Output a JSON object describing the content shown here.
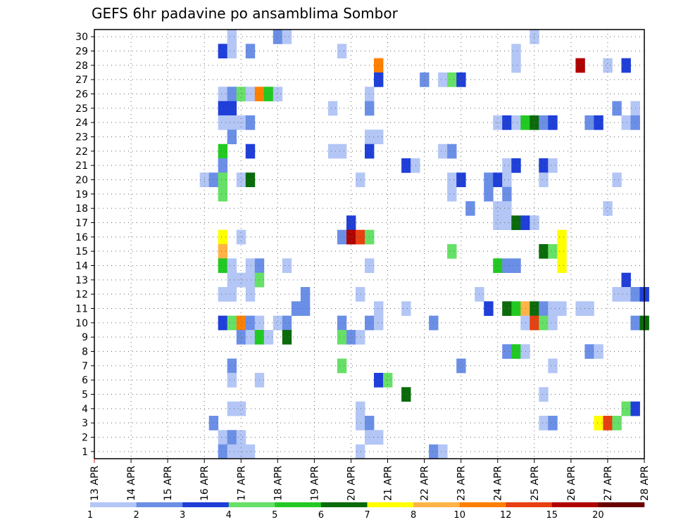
{
  "chart_data": {
    "type": "heatmap",
    "title": "GEFS 6hr padavine po ansamblima Sombor",
    "x_tick_labels": [
      "13 APR",
      "14 APR",
      "15 APR",
      "16 APR",
      "17 APR",
      "18 APR",
      "19 APR",
      "20 APR",
      "21 APR",
      "22 APR",
      "23 APR",
      "24 APR",
      "25 APR",
      "26 APR",
      "27 APR",
      "28 APR"
    ],
    "y_tick_labels": [
      "1",
      "2",
      "3",
      "4",
      "5",
      "6",
      "7",
      "8",
      "9",
      "10",
      "11",
      "12",
      "13",
      "14",
      "15",
      "16",
      "17",
      "18",
      "19",
      "20",
      "21",
      "22",
      "23",
      "24",
      "25",
      "26",
      "27",
      "28",
      "29",
      "30"
    ],
    "xlim_days": [
      13,
      28
    ],
    "ylim": [
      0.5,
      30.5
    ],
    "x_step_hours": 6,
    "grid": true,
    "colorbar": {
      "placement": "bottom",
      "labels": [
        "1",
        "2",
        "3",
        "4",
        "5",
        "6",
        "7",
        "8",
        "10",
        "12",
        "15",
        "20"
      ],
      "colors": [
        "#b3c6f5",
        "#6b8fe6",
        "#1f3fd8",
        "#66e066",
        "#22c922",
        "#0a6b0a",
        "#ffff00",
        "#ffb347",
        "#ff8000",
        "#e84010",
        "#b00000",
        "#6b0000"
      ]
    },
    "cells": [
      [
        30,
        16.75,
        1
      ],
      [
        30,
        18,
        2
      ],
      [
        30,
        18.25,
        1
      ],
      [
        30,
        25,
        1
      ],
      [
        29,
        16.5,
        3
      ],
      [
        29,
        16.75,
        1
      ],
      [
        29,
        17.25,
        2
      ],
      [
        29,
        19.75,
        1
      ],
      [
        29,
        24.5,
        1
      ],
      [
        28,
        20.75,
        9
      ],
      [
        28,
        24.5,
        1
      ],
      [
        28,
        26.25,
        11
      ],
      [
        28,
        27,
        1
      ],
      [
        28,
        27.5,
        3
      ],
      [
        27,
        20.75,
        3
      ],
      [
        27,
        22,
        2
      ],
      [
        27,
        22.5,
        1
      ],
      [
        27,
        22.75,
        4
      ],
      [
        27,
        23,
        3
      ],
      [
        26,
        16.5,
        1
      ],
      [
        26,
        16.75,
        2
      ],
      [
        26,
        17,
        4
      ],
      [
        26,
        17.25,
        1
      ],
      [
        26,
        17.5,
        9
      ],
      [
        26,
        17.75,
        5
      ],
      [
        26,
        18,
        1
      ],
      [
        26,
        20.5,
        1
      ],
      [
        25,
        16.5,
        3
      ],
      [
        25,
        16.75,
        3
      ],
      [
        25,
        19.5,
        1
      ],
      [
        25,
        20.5,
        2
      ],
      [
        25,
        27.25,
        2
      ],
      [
        25,
        27.75,
        1
      ],
      [
        24,
        16.5,
        1
      ],
      [
        24,
        16.75,
        1
      ],
      [
        24,
        17,
        1
      ],
      [
        24,
        17.25,
        2
      ],
      [
        24,
        24,
        1
      ],
      [
        24,
        24.25,
        3
      ],
      [
        24,
        24.5,
        1
      ],
      [
        24,
        24.75,
        5
      ],
      [
        24,
        25,
        6
      ],
      [
        24,
        25.25,
        2
      ],
      [
        24,
        25.5,
        3
      ],
      [
        24,
        26.5,
        2
      ],
      [
        24,
        26.75,
        3
      ],
      [
        24,
        27.5,
        1
      ],
      [
        24,
        27.75,
        2
      ],
      [
        23,
        16.75,
        2
      ],
      [
        23,
        20.5,
        1
      ],
      [
        23,
        20.75,
        1
      ],
      [
        22,
        16.5,
        5
      ],
      [
        22,
        17.25,
        3
      ],
      [
        22,
        19.5,
        1
      ],
      [
        22,
        19.75,
        1
      ],
      [
        22,
        20.5,
        3
      ],
      [
        22,
        22.5,
        1
      ],
      [
        22,
        22.75,
        2
      ],
      [
        21,
        16.5,
        2
      ],
      [
        21,
        21.5,
        3
      ],
      [
        21,
        21.75,
        1
      ],
      [
        21,
        24.25,
        1
      ],
      [
        21,
        24.5,
        3
      ],
      [
        21,
        25.25,
        3
      ],
      [
        21,
        25.5,
        1
      ],
      [
        20,
        16,
        1
      ],
      [
        20,
        16.25,
        2
      ],
      [
        20,
        16.5,
        4
      ],
      [
        20,
        17,
        1
      ],
      [
        20,
        17.25,
        6
      ],
      [
        20,
        20.25,
        1
      ],
      [
        20,
        22.75,
        1
      ],
      [
        20,
        23,
        3
      ],
      [
        20,
        23.75,
        2
      ],
      [
        20,
        24,
        3
      ],
      [
        20,
        24.25,
        1
      ],
      [
        20,
        25.25,
        1
      ],
      [
        20,
        27.25,
        1
      ],
      [
        19,
        16.5,
        4
      ],
      [
        19,
        22.75,
        1
      ],
      [
        19,
        23.75,
        2
      ],
      [
        19,
        24.25,
        2
      ],
      [
        18,
        23.25,
        2
      ],
      [
        18,
        24,
        1
      ],
      [
        18,
        24.25,
        1
      ],
      [
        18,
        27,
        1
      ],
      [
        17,
        20,
        3
      ],
      [
        17,
        24,
        1
      ],
      [
        17,
        24.25,
        1
      ],
      [
        17,
        24.5,
        6
      ],
      [
        17,
        24.75,
        3
      ],
      [
        17,
        25,
        1
      ],
      [
        16,
        16.5,
        7
      ],
      [
        16,
        17,
        1
      ],
      [
        16,
        19.75,
        2
      ],
      [
        16,
        20,
        11
      ],
      [
        16,
        20.25,
        10
      ],
      [
        16,
        20.5,
        4
      ],
      [
        16,
        25.75,
        7
      ],
      [
        15,
        16.5,
        8
      ],
      [
        15,
        22.75,
        4
      ],
      [
        15,
        25.25,
        6
      ],
      [
        15,
        25.5,
        4
      ],
      [
        15,
        25.75,
        7
      ],
      [
        14,
        16.5,
        5
      ],
      [
        14,
        16.75,
        1
      ],
      [
        14,
        17.25,
        1
      ],
      [
        14,
        17.5,
        2
      ],
      [
        14,
        18.25,
        1
      ],
      [
        14,
        20.5,
        1
      ],
      [
        14,
        24,
        5
      ],
      [
        14,
        24.25,
        2
      ],
      [
        14,
        24.5,
        2
      ],
      [
        14,
        25.75,
        7
      ],
      [
        13,
        16.75,
        1
      ],
      [
        13,
        17,
        1
      ],
      [
        13,
        17.25,
        1
      ],
      [
        13,
        17.5,
        4
      ],
      [
        13,
        27.5,
        3
      ],
      [
        12,
        16.5,
        1
      ],
      [
        12,
        16.75,
        1
      ],
      [
        12,
        17.25,
        1
      ],
      [
        12,
        18.75,
        2
      ],
      [
        12,
        20.25,
        1
      ],
      [
        12,
        23.5,
        1
      ],
      [
        12,
        27.25,
        1
      ],
      [
        12,
        27.5,
        1
      ],
      [
        12,
        27.75,
        2
      ],
      [
        12,
        28,
        3
      ],
      [
        11,
        18.5,
        2
      ],
      [
        11,
        18.75,
        2
      ],
      [
        11,
        20.75,
        1
      ],
      [
        11,
        21.5,
        1
      ],
      [
        11,
        23.75,
        3
      ],
      [
        11,
        24.25,
        6
      ],
      [
        11,
        24.5,
        5
      ],
      [
        11,
        24.75,
        8
      ],
      [
        11,
        25,
        6
      ],
      [
        11,
        25.25,
        2
      ],
      [
        11,
        25.5,
        1
      ],
      [
        11,
        25.75,
        1
      ],
      [
        11,
        26.25,
        1
      ],
      [
        11,
        26.5,
        1
      ],
      [
        10,
        16.5,
        3
      ],
      [
        10,
        16.75,
        4
      ],
      [
        10,
        17,
        9
      ],
      [
        10,
        17.25,
        2
      ],
      [
        10,
        17.5,
        1
      ],
      [
        10,
        18,
        1
      ],
      [
        10,
        18.25,
        2
      ],
      [
        10,
        19.75,
        2
      ],
      [
        10,
        20.5,
        2
      ],
      [
        10,
        20.75,
        1
      ],
      [
        10,
        22.25,
        2
      ],
      [
        10,
        24.75,
        1
      ],
      [
        10,
        25,
        10
      ],
      [
        10,
        25.25,
        4
      ],
      [
        10,
        25.5,
        1
      ],
      [
        10,
        27.75,
        2
      ],
      [
        10,
        28,
        6
      ],
      [
        9,
        17,
        2
      ],
      [
        9,
        17.25,
        1
      ],
      [
        9,
        17.5,
        5
      ],
      [
        9,
        17.75,
        1
      ],
      [
        9,
        18.25,
        6
      ],
      [
        9,
        19.75,
        4
      ],
      [
        9,
        20,
        2
      ],
      [
        9,
        20.25,
        1
      ],
      [
        8,
        24.25,
        2
      ],
      [
        8,
        24.5,
        5
      ],
      [
        8,
        24.75,
        1
      ],
      [
        8,
        26.5,
        2
      ],
      [
        8,
        26.75,
        1
      ],
      [
        7,
        16.75,
        2
      ],
      [
        7,
        19.75,
        4
      ],
      [
        7,
        23,
        2
      ],
      [
        7,
        25.5,
        1
      ],
      [
        6,
        16.75,
        1
      ],
      [
        6,
        17.5,
        1
      ],
      [
        6,
        20.75,
        3
      ],
      [
        6,
        21,
        4
      ],
      [
        5,
        21.5,
        6
      ],
      [
        5,
        25.25,
        1
      ],
      [
        4,
        16.75,
        1
      ],
      [
        4,
        17,
        1
      ],
      [
        4,
        20.25,
        1
      ],
      [
        4,
        27.5,
        4
      ],
      [
        4,
        27.75,
        3
      ],
      [
        3,
        16.25,
        2
      ],
      [
        3,
        20.25,
        1
      ],
      [
        3,
        20.5,
        2
      ],
      [
        3,
        25.25,
        1
      ],
      [
        3,
        25.5,
        2
      ],
      [
        3,
        26.75,
        7
      ],
      [
        3,
        27,
        10
      ],
      [
        3,
        27.25,
        4
      ],
      [
        2,
        16.5,
        1
      ],
      [
        2,
        16.75,
        2
      ],
      [
        2,
        17,
        1
      ],
      [
        2,
        20.5,
        1
      ],
      [
        2,
        20.75,
        1
      ],
      [
        1,
        16.5,
        2
      ],
      [
        1,
        16.75,
        1
      ],
      [
        1,
        17,
        1
      ],
      [
        1,
        17.25,
        1
      ],
      [
        1,
        20.25,
        1
      ],
      [
        1,
        22.25,
        2
      ],
      [
        1,
        22.5,
        1
      ]
    ]
  }
}
